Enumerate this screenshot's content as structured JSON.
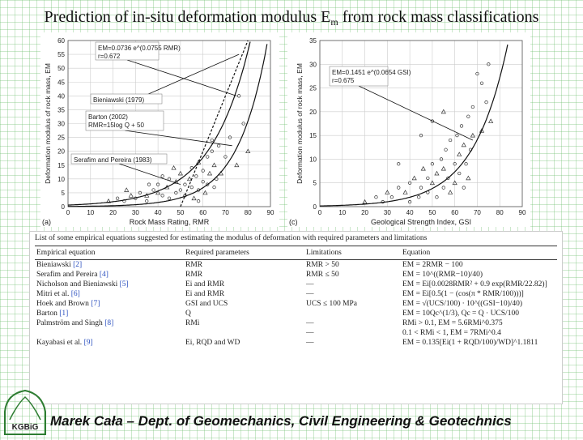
{
  "title": {
    "main": "Prediction of in-situ deformation modulus E",
    "sub": "m",
    "rest": " from rock mass classifications"
  },
  "chart_data": [
    {
      "type": "scatter",
      "panel_label": "(a)",
      "xlabel": "Rock Mass Rating, RMR",
      "ylabel": "Deformation modulus of rock mass, EM",
      "xlim": [
        0,
        90
      ],
      "ylim": [
        0,
        60
      ],
      "xticks": [
        0,
        10,
        20,
        30,
        40,
        50,
        60,
        70,
        80,
        90
      ],
      "yticks": [
        0,
        5,
        10,
        15,
        20,
        25,
        30,
        35,
        40,
        45,
        50,
        55,
        60
      ],
      "annotations": [
        "EM=0.0736 e^(0.0755 RMR)",
        "r=0.672",
        "Bieniawski (1979)",
        "Barton (2002)",
        "RMR=15log Q + 50",
        "Serafim and Pereira (1983)"
      ],
      "points": [
        [
          18,
          2
        ],
        [
          22,
          3
        ],
        [
          25,
          2
        ],
        [
          28,
          4
        ],
        [
          30,
          3
        ],
        [
          32,
          5
        ],
        [
          35,
          4
        ],
        [
          35,
          2
        ],
        [
          38,
          6
        ],
        [
          40,
          5
        ],
        [
          40,
          8
        ],
        [
          42,
          4
        ],
        [
          44,
          7
        ],
        [
          45,
          10
        ],
        [
          45,
          3
        ],
        [
          48,
          9
        ],
        [
          48,
          5
        ],
        [
          50,
          6
        ],
        [
          50,
          12
        ],
        [
          52,
          8
        ],
        [
          52,
          4
        ],
        [
          54,
          10
        ],
        [
          55,
          7
        ],
        [
          55,
          14
        ],
        [
          56,
          3
        ],
        [
          57,
          11
        ],
        [
          58,
          6
        ],
        [
          58,
          16
        ],
        [
          60,
          9
        ],
        [
          60,
          13
        ],
        [
          61,
          5
        ],
        [
          62,
          18
        ],
        [
          62,
          8
        ],
        [
          63,
          12
        ],
        [
          64,
          20
        ],
        [
          65,
          7
        ],
        [
          65,
          15
        ],
        [
          66,
          10
        ],
        [
          67,
          22
        ],
        [
          68,
          12
        ],
        [
          70,
          18
        ],
        [
          72,
          25
        ],
        [
          75,
          15
        ],
        [
          76,
          40
        ],
        [
          78,
          30
        ],
        [
          80,
          20
        ],
        [
          64,
          24
        ],
        [
          58,
          2
        ],
        [
          47,
          14
        ],
        [
          42,
          11
        ],
        [
          36,
          8
        ],
        [
          26,
          6
        ]
      ]
    },
    {
      "type": "scatter",
      "panel_label": "(c)",
      "xlabel": "Geological Strength Index, GSI",
      "ylabel": "Deformation modulus of rock mass, EM",
      "xlim": [
        0,
        90
      ],
      "ylim": [
        0,
        35
      ],
      "xticks": [
        0,
        10,
        20,
        30,
        40,
        50,
        60,
        70,
        80,
        90
      ],
      "yticks": [
        0,
        5,
        10,
        15,
        20,
        25,
        30,
        35
      ],
      "annotations": [
        "EM=0.1451 e^(0.0654 GSI)",
        "r=0.675"
      ],
      "points": [
        [
          20,
          1
        ],
        [
          25,
          2
        ],
        [
          28,
          1
        ],
        [
          30,
          3
        ],
        [
          32,
          2
        ],
        [
          35,
          4
        ],
        [
          38,
          3
        ],
        [
          40,
          5
        ],
        [
          40,
          1
        ],
        [
          42,
          6
        ],
        [
          44,
          2
        ],
        [
          45,
          4
        ],
        [
          46,
          8
        ],
        [
          48,
          3
        ],
        [
          48,
          6
        ],
        [
          50,
          5
        ],
        [
          50,
          9
        ],
        [
          52,
          2
        ],
        [
          52,
          7
        ],
        [
          54,
          10
        ],
        [
          55,
          4
        ],
        [
          55,
          8
        ],
        [
          56,
          12
        ],
        [
          57,
          6
        ],
        [
          58,
          3
        ],
        [
          58,
          14
        ],
        [
          60,
          9
        ],
        [
          60,
          5
        ],
        [
          61,
          15
        ],
        [
          62,
          7
        ],
        [
          62,
          11
        ],
        [
          63,
          17
        ],
        [
          64,
          4
        ],
        [
          64,
          13
        ],
        [
          65,
          9
        ],
        [
          66,
          19
        ],
        [
          66,
          6
        ],
        [
          67,
          12
        ],
        [
          68,
          21
        ],
        [
          68,
          15
        ],
        [
          70,
          28
        ],
        [
          72,
          26
        ],
        [
          72,
          16
        ],
        [
          74,
          22
        ],
        [
          75,
          30
        ],
        [
          76,
          18
        ],
        [
          50,
          18
        ],
        [
          45,
          15
        ],
        [
          55,
          20
        ],
        [
          35,
          9
        ]
      ]
    }
  ],
  "table": {
    "caption": "List of some empirical equations suggested for estimating the modulus of deformation with required parameters and limitations",
    "headers": [
      "Empirical equation",
      "Required parameters",
      "Limitations",
      "Equation"
    ],
    "rows": [
      {
        "author": "Bieniawski",
        "ref": "[2]",
        "params": "RMR",
        "limit": "RMR > 50",
        "equation": "EM = 2RMR − 100"
      },
      {
        "author": "Serafim and Pereira",
        "ref": "[4]",
        "params": "RMR",
        "limit": "RMR ≤ 50",
        "equation": "EM = 10^((RMR−10)/40)"
      },
      {
        "author": "Nicholson and Bieniawski",
        "ref": "[5]",
        "params": "Ei and RMR",
        "limit": "—",
        "equation": "EM = Ei[0.0028RMR² + 0.9 exp(RMR/22.82)]"
      },
      {
        "author": "Mitri et al.",
        "ref": "[6]",
        "params": "Ei and RMR",
        "limit": "—",
        "equation": "EM = Ei[0.5(1 − (cos(π * RMR/100)))]"
      },
      {
        "author": "Hoek and Brown",
        "ref": "[7]",
        "params": "GSI and UCS",
        "limit": "UCS ≤ 100 MPa",
        "equation": "EM = √(UCS/100) · 10^((GSI−10)/40)"
      },
      {
        "author": "Barton",
        "ref": "[1]",
        "params": "Q",
        "limit": "",
        "equation": "EM = 10Qc^(1/3), Qc = Q · UCS/100"
      },
      {
        "author": "Palmström and Singh",
        "ref": "[8]",
        "params": "RMi",
        "limit": "—",
        "equation": "RMi > 0.1, EM = 5.6RMi^0.375"
      },
      {
        "author": "",
        "ref": "",
        "params": "",
        "limit": "—",
        "equation": "0.1 < RMi < 1, EM = 7RMi^0.4"
      },
      {
        "author": "Kayabasi et al.",
        "ref": "[9]",
        "params": "Ei, RQD and WD",
        "limit": "—",
        "equation": "EM = 0.135[Ei(1 + RQD/100)/WD]^1.1811"
      }
    ]
  },
  "footer": "Marek Cała – Dept. of Geomechanics, Civil Engineering & Geotechnics",
  "logo": {
    "text": "KGBiG",
    "color": "#2e7d32"
  }
}
